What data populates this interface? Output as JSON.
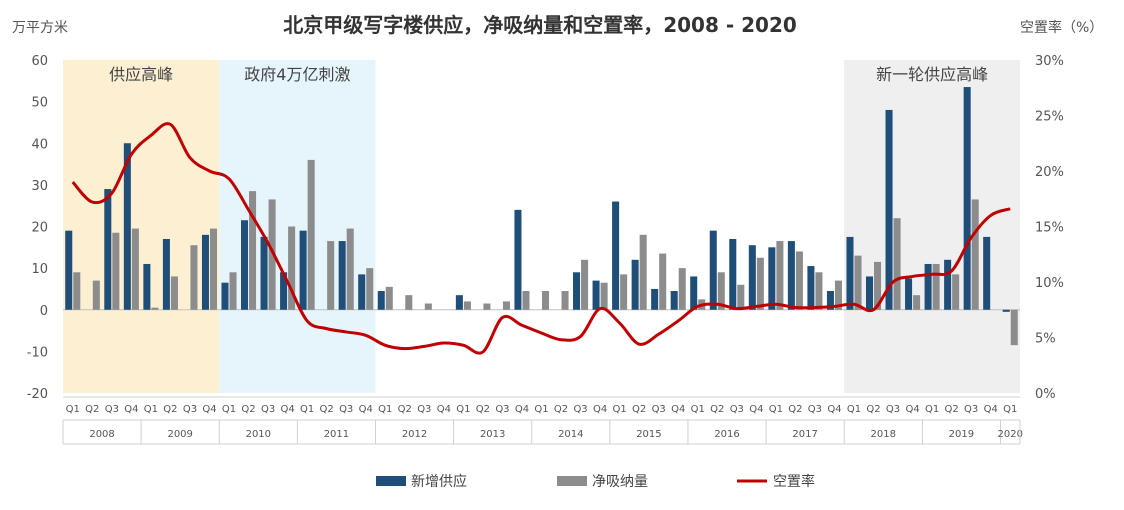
{
  "chart_data": {
    "type": "bar",
    "title": "北京甲级写字楼供应，净吸纳量和空置率，2008 - 2020",
    "ylabel_left": "万平方米",
    "ylabel_right": "空置率（%）",
    "ylim_left": [
      -20,
      60
    ],
    "ylim_right": [
      0,
      30
    ],
    "yticks_left": [
      "60",
      "50",
      "40",
      "30",
      "20",
      "10",
      "0",
      "-10",
      "-20"
    ],
    "yticks_right": [
      "30%",
      "25%",
      "20%",
      "15%",
      "10%",
      "5%",
      "0%"
    ],
    "quarters": [
      "Q1",
      "Q2",
      "Q3",
      "Q4",
      "Q1",
      "Q2",
      "Q3",
      "Q4",
      "Q1",
      "Q2",
      "Q3",
      "Q4",
      "Q1",
      "Q2",
      "Q3",
      "Q4",
      "Q1",
      "Q2",
      "Q3",
      "Q4",
      "Q1",
      "Q2",
      "Q3",
      "Q4",
      "Q1",
      "Q2",
      "Q3",
      "Q4",
      "Q1",
      "Q2",
      "Q3",
      "Q4",
      "Q1",
      "Q2",
      "Q3",
      "Q4",
      "Q1",
      "Q2",
      "Q3",
      "Q4",
      "Q1",
      "Q2",
      "Q3",
      "Q4",
      "Q1",
      "Q2",
      "Q3",
      "Q4",
      "Q1"
    ],
    "years": [
      {
        "label": "2008",
        "count": 4
      },
      {
        "label": "2009",
        "count": 4
      },
      {
        "label": "2010",
        "count": 4
      },
      {
        "label": "2011",
        "count": 4
      },
      {
        "label": "2012",
        "count": 4
      },
      {
        "label": "2013",
        "count": 4
      },
      {
        "label": "2014",
        "count": 4
      },
      {
        "label": "2015",
        "count": 4
      },
      {
        "label": "2016",
        "count": 4
      },
      {
        "label": "2017",
        "count": 4
      },
      {
        "label": "2018",
        "count": 4
      },
      {
        "label": "2019",
        "count": 4
      },
      {
        "label": "2020",
        "count": 1
      }
    ],
    "bands": [
      {
        "label": "供应高峰",
        "start": 0,
        "end": 7,
        "color": "#fdf0d2"
      },
      {
        "label": "政府4万亿刺激",
        "start": 8,
        "end": 15,
        "color": "#e6f5fc"
      },
      {
        "label": "新一轮供应高峰",
        "start": 40,
        "end": 48,
        "color": "#efefef"
      }
    ],
    "series": [
      {
        "name": "新增供应",
        "color": "#1f4e79",
        "values": [
          19,
          0,
          29,
          40,
          11,
          17,
          0,
          18,
          6.5,
          21.5,
          17.5,
          9,
          19,
          0,
          16.5,
          8.5,
          4.5,
          0,
          0,
          0,
          3.5,
          0,
          0,
          24,
          0,
          0,
          9,
          7,
          26,
          12,
          5,
          4.5,
          8,
          19,
          17,
          15.5,
          15,
          16.5,
          10.5,
          4.5,
          17.5,
          8,
          48,
          7.5,
          11,
          12,
          53.5,
          17.5,
          -0.5
        ]
      },
      {
        "name": "净吸纳量",
        "color": "#8c8c8c",
        "values": [
          9,
          7,
          18.5,
          19.5,
          0.5,
          8,
          15.5,
          19.5,
          9,
          28.5,
          26.5,
          20,
          36,
          16.5,
          19.5,
          10,
          5.5,
          3.5,
          1.5,
          0,
          2,
          1.5,
          2,
          4.5,
          4.5,
          4.5,
          12,
          6.5,
          8.5,
          18,
          13.5,
          10,
          2.5,
          9,
          6,
          12.5,
          16.5,
          14,
          9,
          7,
          13,
          11.5,
          22,
          3.5,
          11,
          8.5,
          26.5,
          0,
          -8.5
        ]
      },
      {
        "name": "空置率",
        "color": "#c00000",
        "type": "line",
        "values": [
          19,
          17.2,
          18,
          21.5,
          23.2,
          24.2,
          21.2,
          20,
          19.3,
          16.5,
          13.5,
          10,
          6.5,
          5.8,
          5.5,
          5.2,
          4.3,
          4,
          4.2,
          4.5,
          4.3,
          3.7,
          6.8,
          6.1,
          5.4,
          4.8,
          5.1,
          7.6,
          6.3,
          4.4,
          5.3,
          6.5,
          7.8,
          8,
          7.6,
          7.8,
          8,
          7.7,
          7.7,
          7.8,
          8,
          7.5,
          10,
          10.5,
          10.7,
          11,
          14,
          16,
          16.6
        ]
      }
    ]
  }
}
